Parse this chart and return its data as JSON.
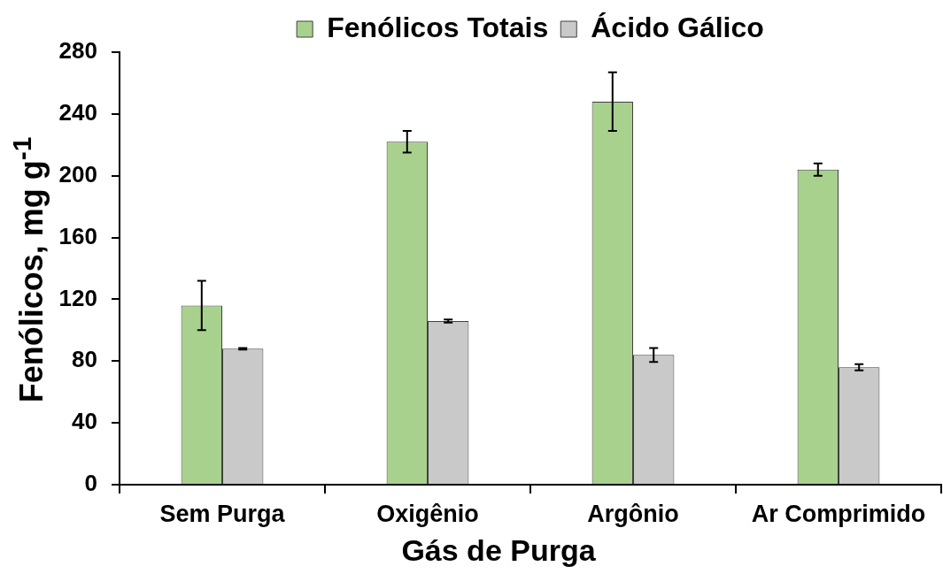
{
  "chart_data": {
    "type": "bar",
    "xlabel": "Gás de Purga",
    "ylabel": "Fenólicos, mg g$^{-1}$",
    "categories": [
      "Sem Purga",
      "Oxigênio",
      "Argônio",
      "Ar Comprimido"
    ],
    "series": [
      {
        "name": "Fenólicos Totais",
        "color": "#a9d18e",
        "values": [
          116,
          222,
          248,
          204
        ],
        "errors": [
          16,
          7,
          19,
          4
        ]
      },
      {
        "name": "Ácido Gálico",
        "color": "#c9c9c9",
        "values": [
          88,
          106,
          84,
          76
        ],
        "errors": [
          0.5,
          1,
          4.5,
          2
        ]
      }
    ],
    "ylim": [
      0,
      280
    ],
    "yticks": [
      0,
      40,
      80,
      120,
      160,
      200,
      240,
      280
    ],
    "legend": "top"
  }
}
